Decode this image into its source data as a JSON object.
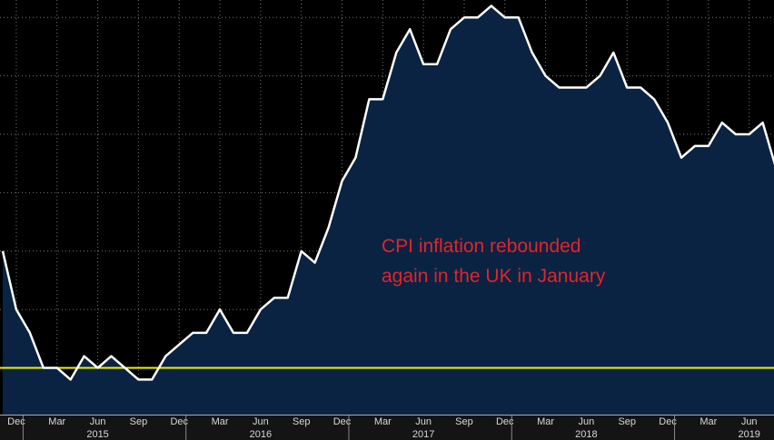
{
  "chart_data": {
    "type": "area",
    "categories": [
      null,
      "Dec",
      null,
      null,
      "Mar",
      null,
      null,
      "Jun",
      null,
      null,
      "Sep",
      null,
      null,
      "Dec",
      null,
      null,
      "Mar",
      null,
      null,
      "Jun",
      null,
      null,
      "Sep",
      null,
      null,
      "Dec",
      null,
      null,
      "Mar",
      null,
      null,
      "Jun",
      null,
      null,
      "Sep",
      null,
      null,
      "Dec",
      null,
      null,
      "Mar",
      null,
      null,
      "Jun",
      null,
      null,
      "Sep",
      null,
      null,
      "Dec",
      null,
      null,
      "Mar",
      null,
      null,
      "Jun",
      null,
      null
    ],
    "years": [
      "2015",
      "2016",
      "2017",
      "2018",
      "2019"
    ],
    "values": [
      1.0,
      0.5,
      0.3,
      0.0,
      0.0,
      -0.1,
      0.1,
      0.0,
      0.1,
      0.0,
      -0.1,
      -0.1,
      0.1,
      0.2,
      0.3,
      0.3,
      0.5,
      0.3,
      0.3,
      0.5,
      0.6,
      0.6,
      1.0,
      0.9,
      1.2,
      1.6,
      1.8,
      2.3,
      2.3,
      2.7,
      2.9,
      2.6,
      2.6,
      2.9,
      3.0,
      3.0,
      3.1,
      3.0,
      3.0,
      2.7,
      2.5,
      2.4,
      2.4,
      2.4,
      2.5,
      2.7,
      2.4,
      2.4,
      2.3,
      2.1,
      1.8,
      1.9,
      1.9,
      2.1,
      2.0,
      2.0,
      2.1,
      1.7
    ],
    "color": "#ffffff",
    "fill": "#0a2342",
    "ylim": [
      -0.4,
      3.15
    ],
    "yticks": [
      0,
      0.5,
      1.0,
      1.5,
      2.0,
      2.5,
      3.0
    ],
    "grid": true,
    "reference_line": {
      "value": 0,
      "color": "#f2f200"
    },
    "annotation": [
      "CPI inflation rebounded",
      "again in the UK in January"
    ],
    "annotation_color": "#e3232c"
  }
}
